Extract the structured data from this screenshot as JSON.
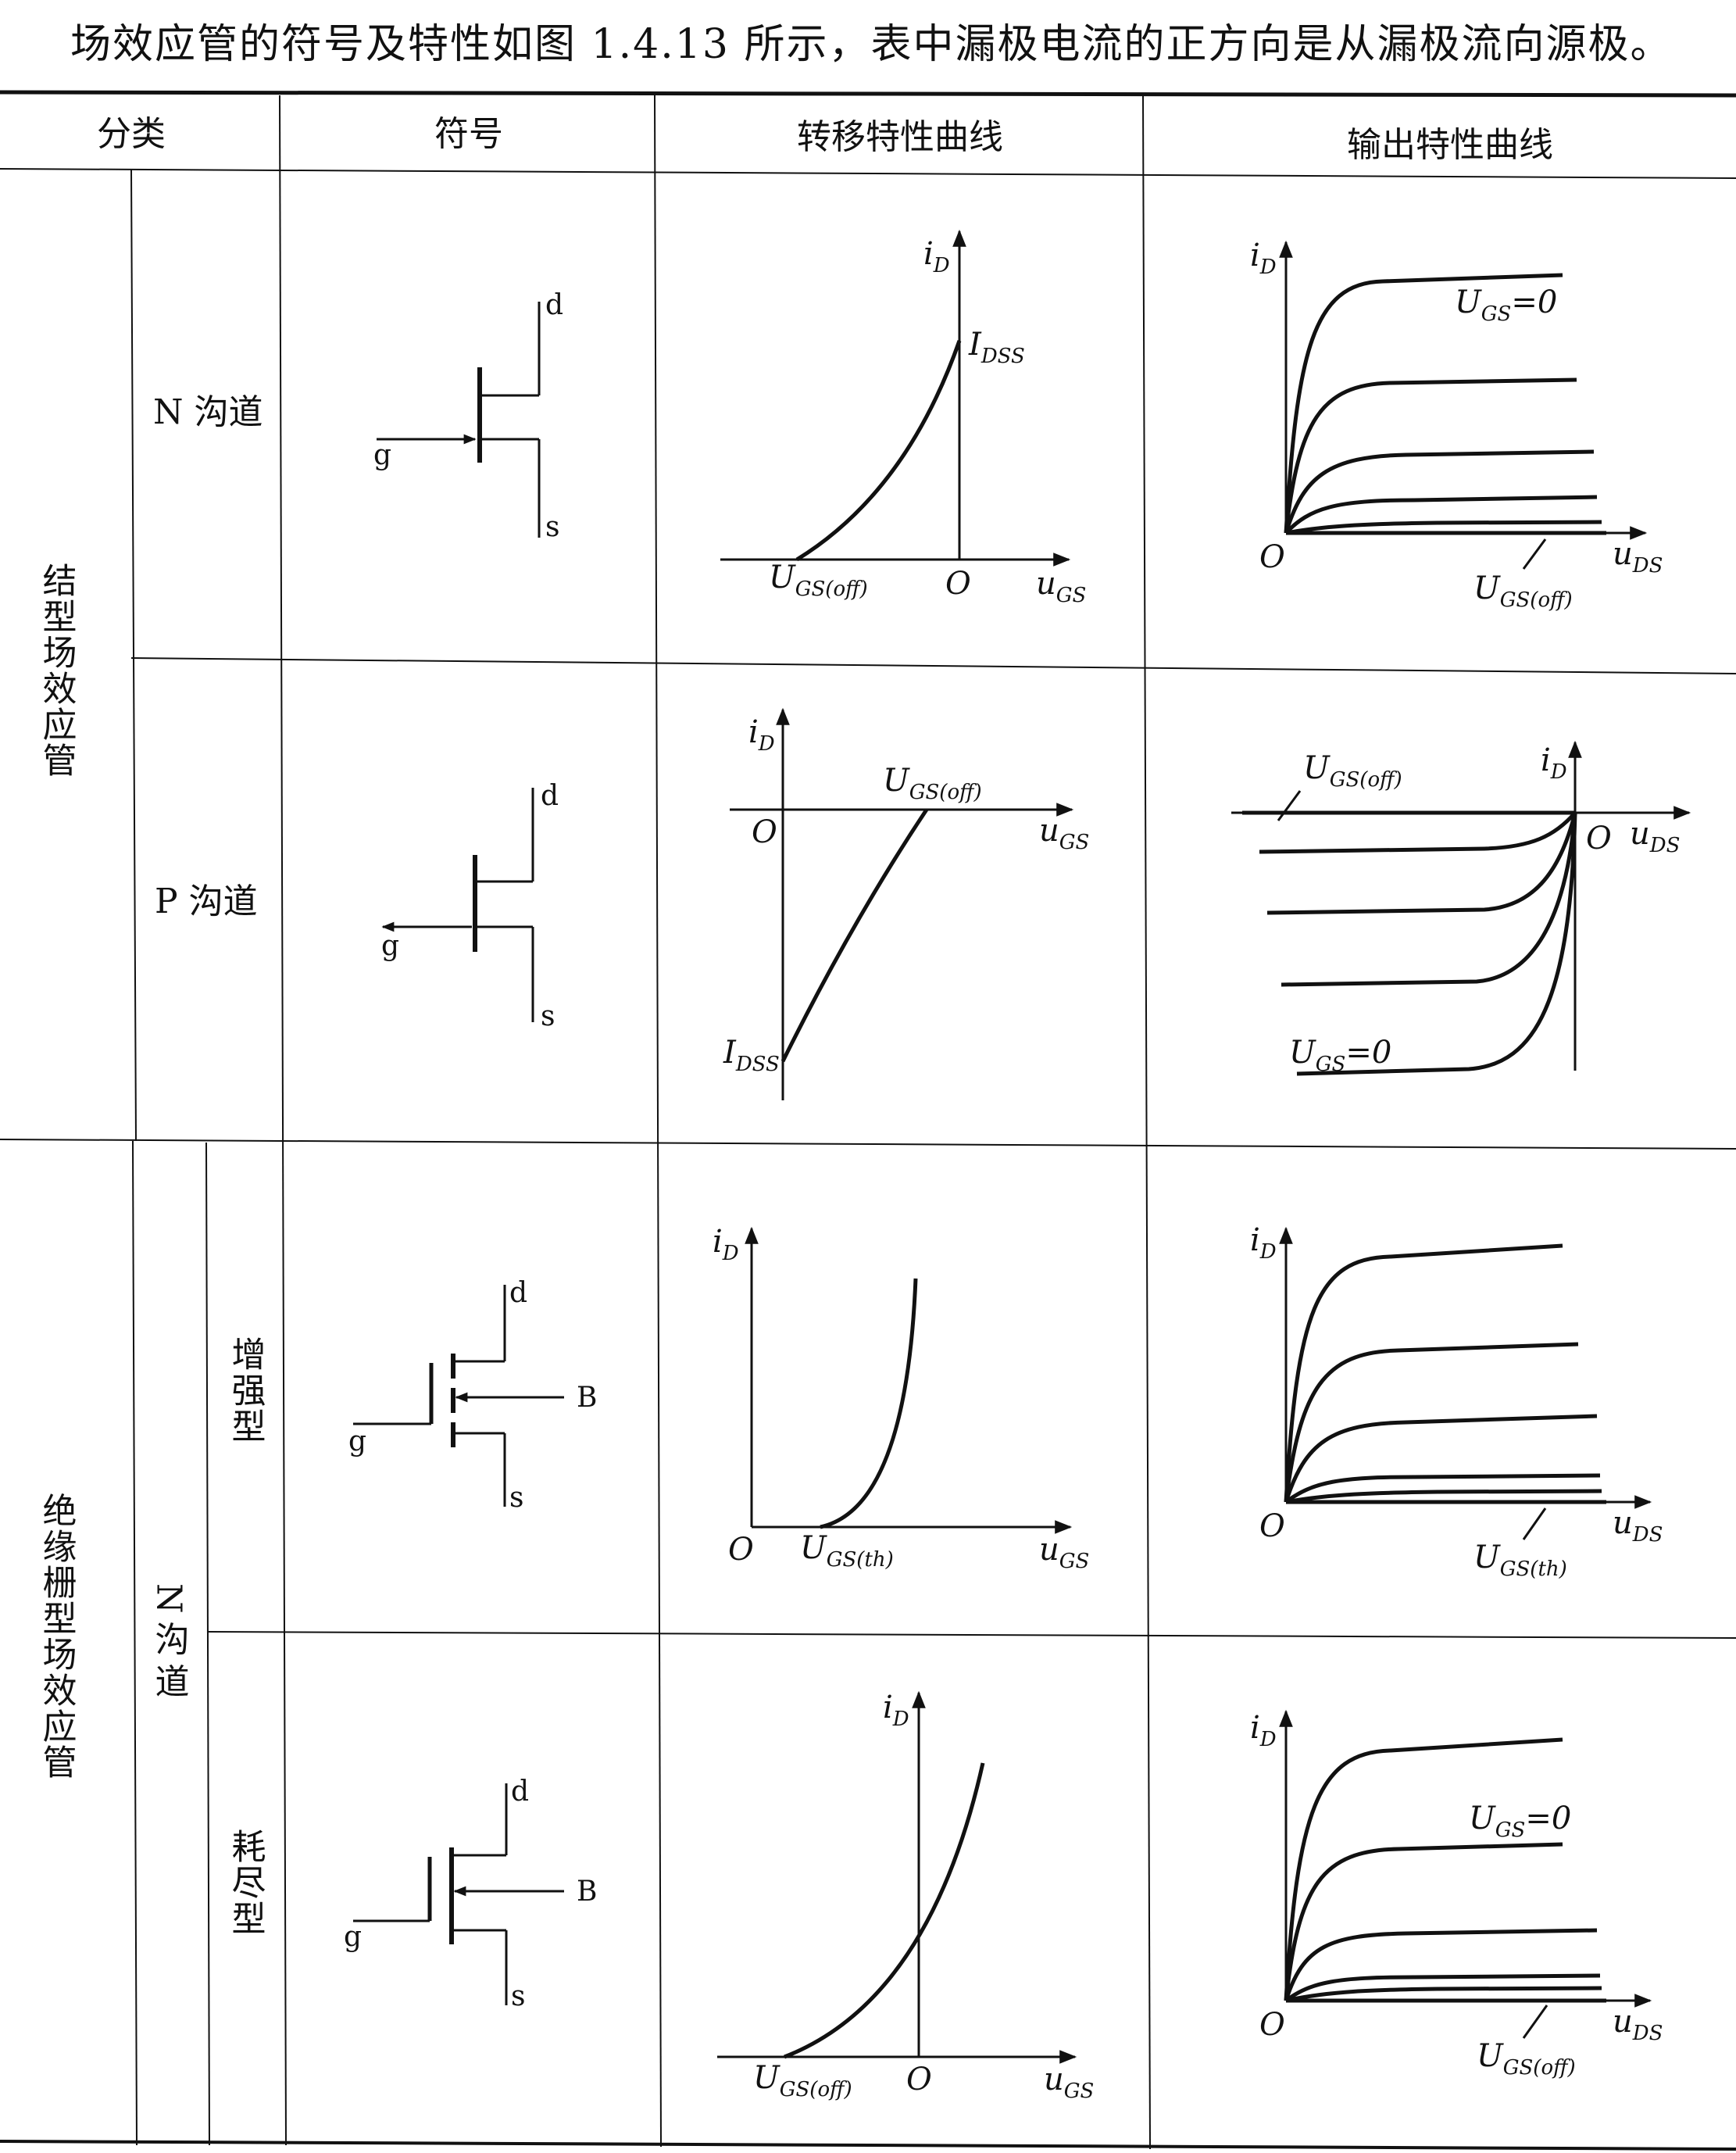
{
  "intro_text": "场效应管的符号及特性如图 1.4.13 所示，表中漏极电流的正方向是从漏极流向源极。",
  "headers": {
    "category": "分类",
    "symbol": "符号",
    "transfer": "转移特性曲线",
    "output": "输出特性曲线"
  },
  "groups": {
    "jfet": "结型场效应管",
    "mosfet": "绝缘栅型场效应管",
    "n_channel": "N 沟道",
    "p_channel": "P 沟道",
    "n_channel_vertical": "N沟道",
    "enhancement": "增强型",
    "depletion": "耗尽型"
  },
  "terminals": {
    "d": "d",
    "g": "g",
    "s": "s",
    "b": "B"
  },
  "labels": {
    "iD": "i",
    "iD_sub": "D",
    "uGS": "u",
    "uGS_sub": "GS",
    "uDS": "u",
    "uDS_sub": "DS",
    "O": "O",
    "IDSS": "I",
    "IDSS_sub": "DSS",
    "UGSoff": "U",
    "UGSoff_sub": "GS(off)",
    "UGSth": "U",
    "UGSth_sub": "GS(th)",
    "UGS0": "U",
    "UGS0_sub": "GS",
    "UGS0_tail": "=0"
  }
}
